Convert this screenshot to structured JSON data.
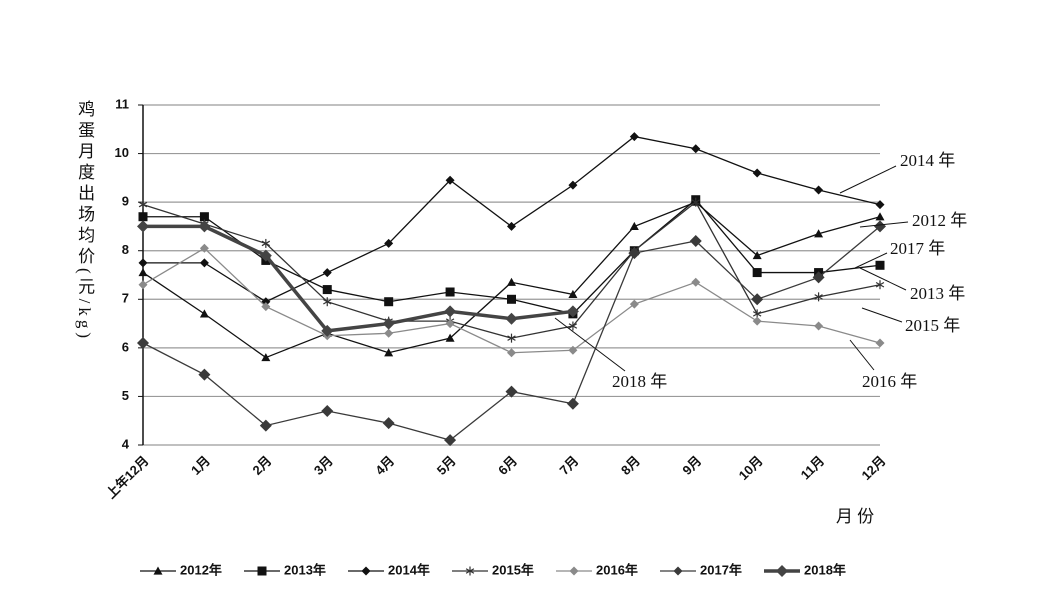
{
  "chart_data": {
    "type": "line",
    "ylabel": "鸡蛋月度出场均价(元/kg)",
    "xlabel": "月 份",
    "categories": [
      "上年12月",
      "1月",
      "2月",
      "3月",
      "4月",
      "5月",
      "6月",
      "7月",
      "8月",
      "9月",
      "10月",
      "11月",
      "12月"
    ],
    "ylim": [
      4,
      11
    ],
    "yticks": [
      4,
      5,
      6,
      7,
      8,
      9,
      10,
      11
    ],
    "grid": true,
    "legend": "bottom",
    "series": [
      {
        "name": "2012年",
        "color": "#111111",
        "marker": "triangle",
        "values": [
          7.55,
          6.7,
          5.8,
          6.3,
          5.9,
          6.2,
          7.35,
          7.1,
          8.5,
          9.0,
          7.9,
          8.35,
          8.7
        ]
      },
      {
        "name": "2013年",
        "color": "#111111",
        "marker": "square",
        "values": [
          8.7,
          8.7,
          7.8,
          7.2,
          6.95,
          7.15,
          7.0,
          6.7,
          8.0,
          9.05,
          7.55,
          7.55,
          7.7
        ]
      },
      {
        "name": "2014年",
        "color": "#111111",
        "marker": "diamond",
        "values": [
          7.75,
          7.75,
          6.95,
          7.55,
          8.15,
          9.45,
          8.5,
          9.35,
          10.35,
          10.1,
          9.6,
          9.25,
          8.95
        ]
      },
      {
        "name": "2015年",
        "color": "#333333",
        "marker": "asterisk",
        "values": [
          8.95,
          8.55,
          8.15,
          6.95,
          6.55,
          6.55,
          6.2,
          6.45,
          8.0,
          9.0,
          6.7,
          7.05,
          7.3
        ]
      },
      {
        "name": "2016年",
        "color": "#8a8a8a",
        "marker": "diamond",
        "values": [
          7.3,
          8.05,
          6.85,
          6.25,
          6.3,
          6.5,
          5.9,
          5.95,
          6.9,
          7.35,
          6.55,
          6.45,
          6.1
        ]
      },
      {
        "name": "2017年",
        "color": "#3a3a3a",
        "marker": "diamond",
        "values": [
          6.1,
          5.45,
          4.4,
          4.7,
          4.45,
          4.1,
          5.1,
          4.85,
          7.95,
          8.2,
          7.0,
          7.45,
          8.5
        ]
      },
      {
        "name": "2018年",
        "color": "#444444",
        "marker": "diamond",
        "bold": true,
        "values": [
          8.5,
          8.5,
          7.9,
          6.35,
          6.5,
          6.75,
          6.6,
          6.75,
          null,
          null,
          null,
          null,
          null
        ]
      }
    ],
    "annotations": [
      "2014 年",
      "2012 年",
      "2017 年",
      "2013 年",
      "2015 年",
      "2016 年",
      "2018 年"
    ]
  }
}
